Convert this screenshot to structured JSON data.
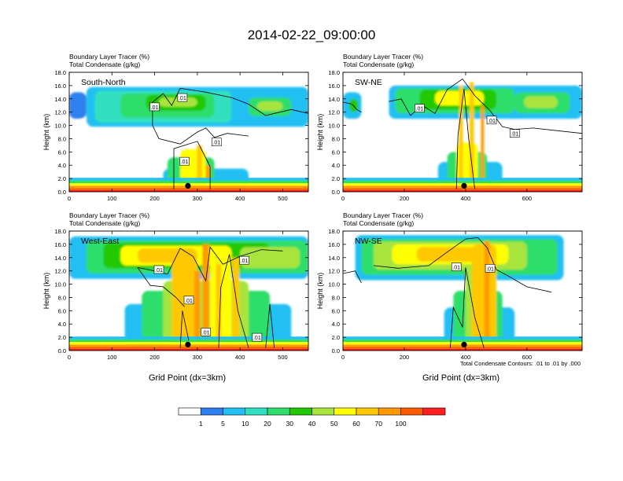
{
  "title": "2014-02-22_09:00:00",
  "panel_subtitle_line1": "Boundary Layer Tracer   (%)",
  "panel_subtitle_line2": "Total Condensate   (g/kg)",
  "ylabel": "Height (km)",
  "xlabel": "Grid Point (dx=3km)",
  "contour_note": "Total Condensate Contours: .01 to .01 by .000",
  "colors": {
    "bins": [
      "#ffffff",
      "#2f7ff0",
      "#22c0f2",
      "#30e0c0",
      "#2fde6a",
      "#22c800",
      "#a8e43c",
      "#ffff00",
      "#ffc800",
      "#ff9a00",
      "#ff5a00",
      "#ff1e1e"
    ]
  },
  "colorbar_labels": [
    "1",
    "5",
    "10",
    "20",
    "30",
    "40",
    "50",
    "60",
    "70",
    "100"
  ],
  "chart_data": [
    {
      "type": "heatmap",
      "name": "South-North",
      "label": "South-North",
      "xlim": [
        0,
        560
      ],
      "ylim": [
        0,
        18
      ],
      "xticks": [
        "0",
        "100",
        "200",
        "300",
        "400",
        "500"
      ],
      "yticks": [
        "0.0",
        "2.0",
        "4.0",
        "6.0",
        "8.0",
        "10.0",
        "12.0",
        "14.0",
        "16.0",
        "18.0"
      ],
      "contour_labels": [
        ".01",
        ".01",
        ".01",
        ".01"
      ],
      "marker_x": 278
    },
    {
      "type": "heatmap",
      "name": "SW-NE",
      "label": "SW-NE",
      "xlim": [
        0,
        780
      ],
      "ylim": [
        0,
        18
      ],
      "xticks": [
        "0",
        "200",
        "400",
        "600"
      ],
      "yticks": [
        "0.0",
        "2.0",
        "4.0",
        "6.0",
        "8.0",
        "10.0",
        "12.0",
        "14.0",
        "16.0",
        "18.0"
      ],
      "contour_labels": [
        ".01",
        ".01",
        ".01"
      ],
      "marker_x": 395
    },
    {
      "type": "heatmap",
      "name": "West-East",
      "label": "West-East",
      "xlim": [
        0,
        560
      ],
      "ylim": [
        0,
        18
      ],
      "xticks": [
        "0",
        "100",
        "200",
        "300",
        "400",
        "500"
      ],
      "yticks": [
        "0.0",
        "2.0",
        "4.0",
        "6.0",
        "8.0",
        "10.0",
        "12.0",
        "14.0",
        "16.0",
        "18.0"
      ],
      "contour_labels": [
        ".01",
        ".01",
        ".01",
        ".01",
        ".01"
      ],
      "marker_x": 278
    },
    {
      "type": "heatmap",
      "name": "NW-SE",
      "label": "NW-SE",
      "xlim": [
        0,
        780
      ],
      "ylim": [
        0,
        18
      ],
      "xticks": [
        "0",
        "200",
        "400",
        "600"
      ],
      "yticks": [
        "0.0",
        "2.0",
        "4.0",
        "6.0",
        "8.0",
        "10.0",
        "12.0",
        "14.0",
        "16.0",
        "18.0"
      ],
      "contour_labels": [
        ".01",
        ".01"
      ],
      "marker_x": 395
    }
  ]
}
